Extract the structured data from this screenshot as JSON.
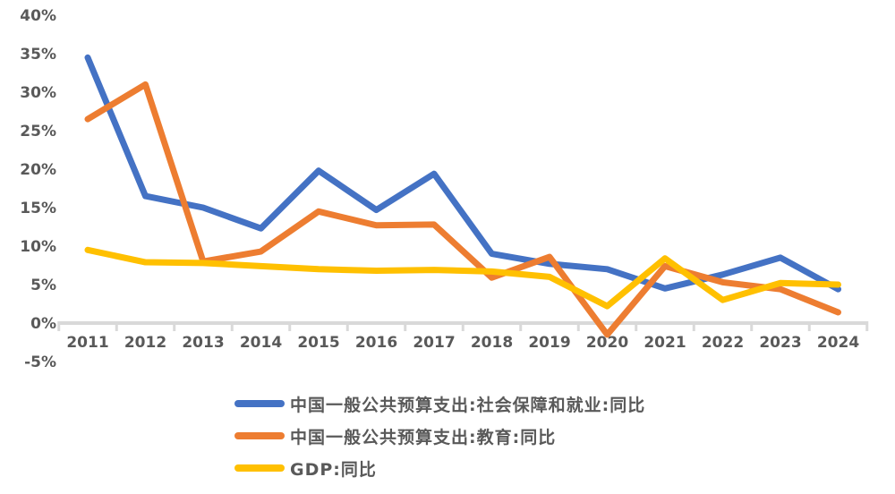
{
  "chart_data": {
    "type": "line",
    "title": "",
    "xlabel": "",
    "ylabel": "",
    "x_categories": [
      "2011",
      "2012",
      "2013",
      "2014",
      "2015",
      "2016",
      "2017",
      "2018",
      "2019",
      "2020",
      "2021",
      "2022",
      "2023",
      "2024"
    ],
    "y_ticks": [
      40,
      35,
      30,
      25,
      20,
      15,
      10,
      5,
      0,
      -5
    ],
    "y_unit": "%",
    "ylim": [
      -5,
      40
    ],
    "grid": false,
    "legend_position": "bottom-left",
    "axis_color": "#D9D9D9",
    "text_color": "#595959",
    "series": [
      {
        "id": "social-security-employment-expenditure-yoy",
        "name": "中国一般公共预算支出:社会保障和就业:同比",
        "color": "#4472C4",
        "values": [
          34.5,
          16.5,
          15.0,
          12.3,
          19.8,
          14.7,
          19.4,
          9.0,
          7.7,
          7.0,
          4.5,
          6.3,
          8.5,
          4.4
        ]
      },
      {
        "id": "education-expenditure-yoy",
        "name": "中国一般公共预算支出:教育:同比",
        "color": "#ED7D31",
        "values": [
          26.5,
          31.0,
          8.0,
          9.3,
          14.5,
          12.7,
          12.8,
          5.9,
          8.6,
          -1.5,
          7.4,
          5.3,
          4.4,
          1.4
        ]
      },
      {
        "id": "gdp-yoy",
        "name": "GDP:同比",
        "color": "#FFC000",
        "values": [
          9.5,
          7.9,
          7.8,
          7.4,
          7.0,
          6.8,
          6.9,
          6.7,
          6.0,
          2.2,
          8.4,
          3.0,
          5.2,
          5.0
        ]
      }
    ]
  }
}
